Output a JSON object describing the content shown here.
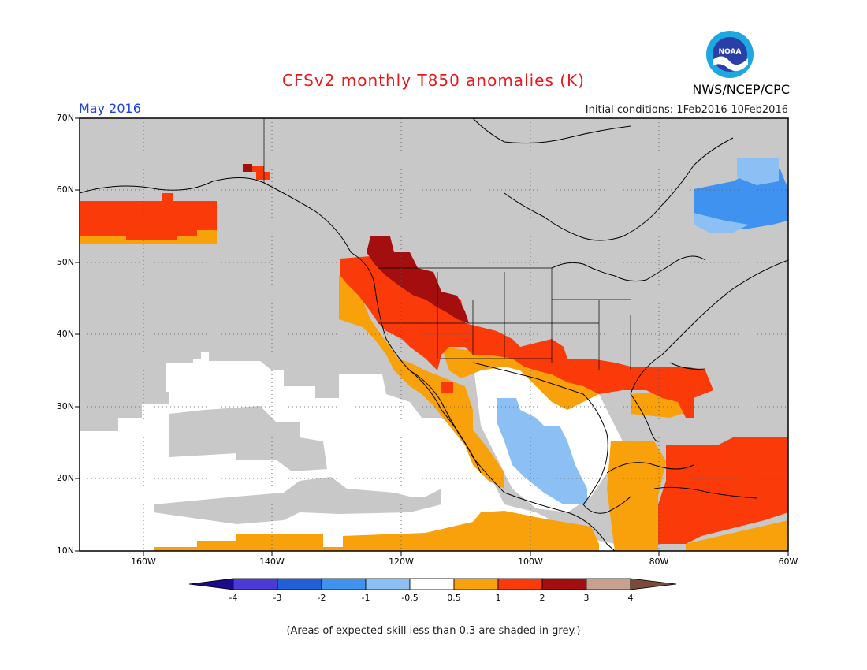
{
  "header": {
    "title": "CFSv2 monthly T850 anomalies (K)",
    "period": "May 2016",
    "initial_conditions": "Initial conditions: 1Feb2016-10Feb2016",
    "agency": "NWS/NCEP/CPC",
    "logo_text": "NOAA"
  },
  "axes": {
    "lat_labels": [
      "70N",
      "60N",
      "50N",
      "40N",
      "30N",
      "20N",
      "10N"
    ],
    "lon_labels": [
      "160W",
      "140W",
      "120W",
      "100W",
      "80W",
      "60W"
    ]
  },
  "colorbar": {
    "labels": [
      "-4",
      "-3",
      "-2",
      "-1",
      "-0.5",
      "0.5",
      "1",
      "2",
      "3",
      "4"
    ],
    "colors": [
      "#1a0a8c",
      "#4b3bd6",
      "#1f5fd8",
      "#3f92ef",
      "#8cc0f5",
      "#ffffff",
      "#f8a10b",
      "#fb3a0a",
      "#a40e0f",
      "#c9a08e",
      "#7a4a3a"
    ]
  },
  "legend_note": "(Areas of expected skill less than 0.3 are shaded in grey.)",
  "colors": {
    "grey_mask": "#c8c8c8",
    "ocean_neutral": "#ffffff",
    "title_red": "#e8191c",
    "period_blue": "#1f3fe0"
  }
}
